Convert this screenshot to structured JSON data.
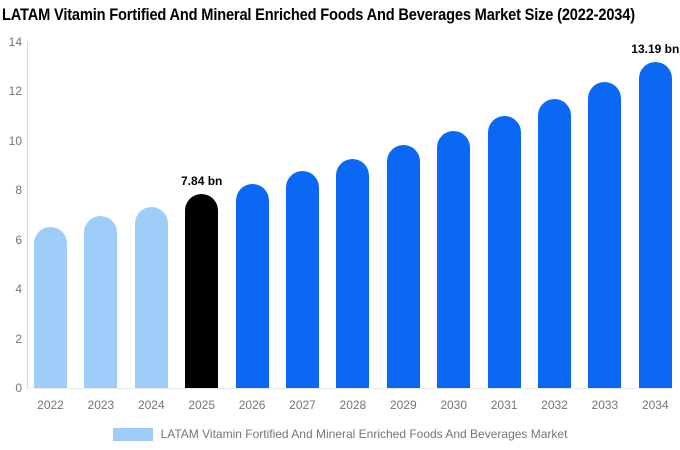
{
  "title": "LATAM Vitamin Fortified And Mineral Enriched Foods And Beverages Market Size (2022-2034)",
  "chart_data": {
    "type": "bar",
    "title": "LATAM Vitamin Fortified And Mineral Enriched Foods And Beverages Market Size (2022-2034)",
    "categories": [
      "2022",
      "2023",
      "2024",
      "2025",
      "2026",
      "2027",
      "2028",
      "2029",
      "2030",
      "2031",
      "2032",
      "2033",
      "2034"
    ],
    "values": [
      6.5,
      6.95,
      7.32,
      7.84,
      8.25,
      8.78,
      9.28,
      9.82,
      10.38,
      11.02,
      11.68,
      12.4,
      13.19
    ],
    "unit": "bn",
    "xlabel": "",
    "ylabel": "",
    "ylim": [
      0,
      14
    ],
    "y_ticks": [
      0,
      2,
      4,
      6,
      8,
      10,
      12,
      14
    ],
    "grid": false,
    "legend_position": "bottom",
    "bar_roles": [
      "historical",
      "historical",
      "historical",
      "base_year",
      "forecast",
      "forecast",
      "forecast",
      "forecast",
      "forecast",
      "forecast",
      "forecast",
      "forecast",
      "forecast"
    ],
    "role_colors": {
      "historical": "#9ecdfa",
      "base_year": "#000000",
      "forecast": "#0b68f5"
    },
    "annotations": [
      {
        "category": "2025",
        "value": 7.84,
        "text": "7.84 bn"
      },
      {
        "category": "2034",
        "value": 13.19,
        "text": "13.19 bn"
      }
    ]
  },
  "legend": {
    "label": "LATAM Vitamin Fortified And Mineral Enriched Foods And Beverages Market",
    "swatch_color": "#9ecdfa"
  },
  "colors": {
    "axis_line": "#d9d9d9",
    "baseline": "#ebebeb",
    "tick_text": "#757575",
    "title_text": "#000000",
    "annotation_text": "#000000",
    "background": "#ffffff"
  }
}
